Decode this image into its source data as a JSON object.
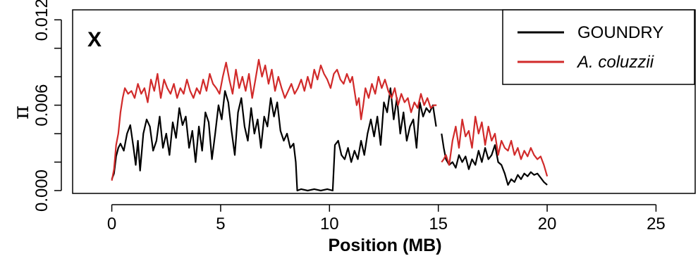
{
  "chart_data": {
    "type": "line",
    "panel_label": "X",
    "xlabel": "Position (MB)",
    "ylabel": "π",
    "xlim": [
      -1.8,
      26.8
    ],
    "ylim": [
      -0.0002,
      0.0127
    ],
    "x_ticks": [
      0,
      5,
      10,
      15,
      20,
      25
    ],
    "x_tick_labels": [
      "0",
      "5",
      "10",
      "15",
      "20",
      "25"
    ],
    "y_ticks": [
      0.0,
      0.002,
      0.004,
      0.006,
      0.008,
      0.01,
      0.012
    ],
    "y_tick_labels": [
      "0.000",
      "",
      "",
      "0.006",
      "",
      "",
      "0.012"
    ],
    "grid": false,
    "legend_position": "top-right",
    "series": [
      {
        "name": "GOUNDRY",
        "color": "#000000",
        "segments": [
          [
            [
              0.0,
              0.0008
            ],
            [
              0.1,
              0.0012
            ],
            [
              0.2,
              0.0024
            ],
            [
              0.3,
              0.003
            ],
            [
              0.4,
              0.0033
            ],
            [
              0.55,
              0.0028
            ],
            [
              0.7,
              0.004
            ],
            [
              0.85,
              0.0046
            ],
            [
              1.0,
              0.003
            ],
            [
              1.1,
              0.0018
            ],
            [
              1.2,
              0.0035
            ],
            [
              1.3,
              0.0014
            ],
            [
              1.45,
              0.004
            ],
            [
              1.6,
              0.005
            ],
            [
              1.75,
              0.0045
            ],
            [
              1.9,
              0.0028
            ],
            [
              2.05,
              0.0035
            ],
            [
              2.2,
              0.0052
            ],
            [
              2.35,
              0.003
            ],
            [
              2.5,
              0.004
            ],
            [
              2.65,
              0.0025
            ],
            [
              2.8,
              0.0048
            ],
            [
              2.95,
              0.0037
            ],
            [
              3.1,
              0.0058
            ],
            [
              3.25,
              0.0046
            ],
            [
              3.4,
              0.0052
            ],
            [
              3.55,
              0.003
            ],
            [
              3.7,
              0.0042
            ],
            [
              3.85,
              0.002
            ],
            [
              4.0,
              0.0045
            ],
            [
              4.15,
              0.0028
            ],
            [
              4.3,
              0.0055
            ],
            [
              4.45,
              0.0048
            ],
            [
              4.6,
              0.0022
            ],
            [
              4.75,
              0.004
            ],
            [
              4.9,
              0.006
            ],
            [
              5.05,
              0.005
            ],
            [
              5.2,
              0.007
            ],
            [
              5.35,
              0.0062
            ],
            [
              5.5,
              0.0042
            ],
            [
              5.65,
              0.0025
            ],
            [
              5.8,
              0.0055
            ],
            [
              5.95,
              0.0065
            ],
            [
              6.1,
              0.0045
            ],
            [
              6.25,
              0.0035
            ],
            [
              6.4,
              0.0058
            ],
            [
              6.55,
              0.004
            ],
            [
              6.7,
              0.005
            ],
            [
              6.85,
              0.003
            ],
            [
              7.0,
              0.0052
            ],
            [
              7.15,
              0.0045
            ],
            [
              7.3,
              0.0065
            ],
            [
              7.45,
              0.0052
            ],
            [
              7.6,
              0.0062
            ],
            [
              7.75,
              0.0042
            ],
            [
              7.9,
              0.0035
            ],
            [
              8.05,
              0.004
            ],
            [
              8.2,
              0.003
            ],
            [
              8.35,
              0.0033
            ],
            [
              8.45,
              0.002
            ],
            [
              8.52,
              0.0
            ],
            [
              8.7,
              0.0001
            ],
            [
              9.0,
              0.0
            ],
            [
              9.3,
              0.0001
            ],
            [
              9.6,
              0.0
            ],
            [
              9.9,
              0.0001
            ],
            [
              10.15,
              0.0
            ],
            [
              10.25,
              0.0032
            ],
            [
              10.4,
              0.0035
            ],
            [
              10.55,
              0.0025
            ],
            [
              10.7,
              0.0022
            ],
            [
              10.85,
              0.003
            ],
            [
              11.0,
              0.002
            ],
            [
              11.15,
              0.0028
            ],
            [
              11.3,
              0.0022
            ],
            [
              11.45,
              0.0035
            ],
            [
              11.6,
              0.0025
            ],
            [
              11.75,
              0.004
            ],
            [
              11.9,
              0.005
            ],
            [
              12.05,
              0.0038
            ],
            [
              12.2,
              0.0052
            ],
            [
              12.35,
              0.0032
            ],
            [
              12.5,
              0.0062
            ],
            [
              12.65,
              0.0055
            ],
            [
              12.8,
              0.0072
            ],
            [
              12.95,
              0.005
            ],
            [
              13.1,
              0.0065
            ],
            [
              13.25,
              0.004
            ],
            [
              13.4,
              0.0055
            ],
            [
              13.55,
              0.0035
            ],
            [
              13.7,
              0.0045
            ],
            [
              13.85,
              0.005
            ],
            [
              14.0,
              0.003
            ],
            [
              14.15,
              0.0062
            ],
            [
              14.3,
              0.0052
            ],
            [
              14.45,
              0.0058
            ],
            [
              14.6,
              0.0055
            ],
            [
              14.75,
              0.006
            ],
            [
              14.9,
              0.0045
            ]
          ],
          [
            [
              15.15,
              0.004
            ],
            [
              15.25,
              0.003
            ],
            [
              15.35,
              0.0022
            ],
            [
              15.5,
              0.0018
            ],
            [
              15.65,
              0.002
            ],
            [
              15.8,
              0.0016
            ],
            [
              15.95,
              0.0025
            ],
            [
              16.1,
              0.002
            ],
            [
              16.25,
              0.0024
            ],
            [
              16.4,
              0.0015
            ],
            [
              16.55,
              0.0022
            ],
            [
              16.7,
              0.0018
            ],
            [
              16.85,
              0.0028
            ],
            [
              17.0,
              0.002
            ],
            [
              17.15,
              0.003
            ],
            [
              17.3,
              0.0022
            ],
            [
              17.45,
              0.0025
            ],
            [
              17.6,
              0.0032
            ],
            [
              17.75,
              0.002
            ],
            [
              17.9,
              0.0018
            ],
            [
              18.05,
              0.0012
            ],
            [
              18.2,
              0.0004
            ],
            [
              18.35,
              0.0008
            ],
            [
              18.5,
              0.0006
            ],
            [
              18.65,
              0.0011
            ],
            [
              18.8,
              0.0008
            ],
            [
              18.95,
              0.0012
            ],
            [
              19.1,
              0.001
            ],
            [
              19.25,
              0.0013
            ],
            [
              19.4,
              0.0011
            ],
            [
              19.55,
              0.0012
            ],
            [
              19.7,
              0.0009
            ],
            [
              19.85,
              0.0006
            ],
            [
              20.0,
              0.0004
            ]
          ]
        ]
      },
      {
        "name": "A. coluzzii",
        "color": "#d12a2a",
        "segments": [
          [
            [
              0.0,
              0.0007
            ],
            [
              0.1,
              0.0015
            ],
            [
              0.2,
              0.0032
            ],
            [
              0.3,
              0.004
            ],
            [
              0.4,
              0.0055
            ],
            [
              0.5,
              0.0065
            ],
            [
              0.6,
              0.0072
            ],
            [
              0.75,
              0.0068
            ],
            [
              0.9,
              0.007
            ],
            [
              1.05,
              0.0065
            ],
            [
              1.2,
              0.0075
            ],
            [
              1.35,
              0.0068
            ],
            [
              1.5,
              0.0072
            ],
            [
              1.65,
              0.0062
            ],
            [
              1.8,
              0.0078
            ],
            [
              1.95,
              0.007
            ],
            [
              2.1,
              0.0082
            ],
            [
              2.25,
              0.0065
            ],
            [
              2.4,
              0.0078
            ],
            [
              2.55,
              0.0072
            ],
            [
              2.7,
              0.0068
            ],
            [
              2.85,
              0.0075
            ],
            [
              3.0,
              0.0065
            ],
            [
              3.15,
              0.0072
            ],
            [
              3.3,
              0.0068
            ],
            [
              3.45,
              0.0078
            ],
            [
              3.6,
              0.007
            ],
            [
              3.75,
              0.0065
            ],
            [
              3.9,
              0.0072
            ],
            [
              4.05,
              0.0068
            ],
            [
              4.2,
              0.0078
            ],
            [
              4.35,
              0.007
            ],
            [
              4.5,
              0.0082
            ],
            [
              4.65,
              0.0075
            ],
            [
              4.8,
              0.0072
            ],
            [
              4.95,
              0.0068
            ],
            [
              5.1,
              0.008
            ],
            [
              5.25,
              0.009
            ],
            [
              5.4,
              0.0078
            ],
            [
              5.55,
              0.0068
            ],
            [
              5.7,
              0.0085
            ],
            [
              5.85,
              0.0072
            ],
            [
              6.0,
              0.008
            ],
            [
              6.15,
              0.007
            ],
            [
              6.3,
              0.0082
            ],
            [
              6.45,
              0.0065
            ],
            [
              6.6,
              0.0078
            ],
            [
              6.75,
              0.0092
            ],
            [
              6.9,
              0.008
            ],
            [
              7.05,
              0.0088
            ],
            [
              7.2,
              0.0075
            ],
            [
              7.35,
              0.0085
            ],
            [
              7.5,
              0.007
            ],
            [
              7.65,
              0.008
            ],
            [
              7.8,
              0.0072
            ],
            [
              7.95,
              0.0065
            ],
            [
              8.1,
              0.007
            ],
            [
              8.25,
              0.0075
            ],
            [
              8.4,
              0.0068
            ],
            [
              8.55,
              0.0072
            ],
            [
              8.7,
              0.0078
            ],
            [
              8.85,
              0.007
            ],
            [
              9.0,
              0.008
            ],
            [
              9.15,
              0.0072
            ],
            [
              9.3,
              0.0085
            ],
            [
              9.45,
              0.0078
            ],
            [
              9.6,
              0.0088
            ],
            [
              9.75,
              0.0082
            ],
            [
              9.9,
              0.0078
            ],
            [
              10.05,
              0.0072
            ],
            [
              10.2,
              0.0082
            ],
            [
              10.35,
              0.0085
            ],
            [
              10.5,
              0.0078
            ],
            [
              10.65,
              0.0075
            ],
            [
              10.8,
              0.0082
            ],
            [
              10.95,
              0.0076
            ],
            [
              11.05,
              0.008
            ],
            [
              11.15,
              0.007
            ],
            [
              11.25,
              0.006
            ],
            [
              11.35,
              0.0065
            ],
            [
              11.45,
              0.005
            ],
            [
              11.55,
              0.006
            ],
            [
              11.65,
              0.0072
            ],
            [
              11.8,
              0.0065
            ],
            [
              11.95,
              0.0075
            ],
            [
              12.1,
              0.0068
            ],
            [
              12.25,
              0.008
            ],
            [
              12.4,
              0.0072
            ],
            [
              12.55,
              0.0078
            ],
            [
              12.7,
              0.007
            ],
            [
              12.85,
              0.0065
            ],
            [
              13.0,
              0.0072
            ],
            [
              13.15,
              0.006
            ],
            [
              13.3,
              0.0068
            ],
            [
              13.45,
              0.0062
            ],
            [
              13.6,
              0.0065
            ],
            [
              13.75,
              0.0055
            ],
            [
              13.9,
              0.0062
            ],
            [
              14.05,
              0.0058
            ],
            [
              14.2,
              0.0068
            ],
            [
              14.35,
              0.006
            ],
            [
              14.5,
              0.0065
            ],
            [
              14.65,
              0.0058
            ],
            [
              14.8,
              0.006
            ],
            [
              14.92,
              0.006
            ]
          ],
          [
            [
              15.15,
              0.002
            ],
            [
              15.25,
              0.0022
            ],
            [
              15.35,
              0.0025
            ],
            [
              15.5,
              0.0018
            ],
            [
              15.65,
              0.0035
            ],
            [
              15.8,
              0.0045
            ],
            [
              15.95,
              0.003
            ],
            [
              16.1,
              0.005
            ],
            [
              16.25,
              0.0038
            ],
            [
              16.4,
              0.0042
            ],
            [
              16.55,
              0.003
            ],
            [
              16.7,
              0.0052
            ],
            [
              16.85,
              0.004
            ],
            [
              17.0,
              0.0048
            ],
            [
              17.15,
              0.0032
            ],
            [
              17.3,
              0.0045
            ],
            [
              17.45,
              0.0035
            ],
            [
              17.6,
              0.004
            ],
            [
              17.75,
              0.0025
            ],
            [
              17.9,
              0.0035
            ],
            [
              18.05,
              0.003
            ],
            [
              18.2,
              0.0028
            ],
            [
              18.35,
              0.0035
            ],
            [
              18.5,
              0.0025
            ],
            [
              18.65,
              0.003
            ],
            [
              18.8,
              0.0022
            ],
            [
              18.95,
              0.0028
            ],
            [
              19.1,
              0.0024
            ],
            [
              19.25,
              0.003
            ],
            [
              19.4,
              0.0025
            ],
            [
              19.55,
              0.0022
            ],
            [
              19.7,
              0.0024
            ],
            [
              19.85,
              0.0018
            ],
            [
              20.0,
              0.001
            ]
          ]
        ]
      }
    ]
  }
}
